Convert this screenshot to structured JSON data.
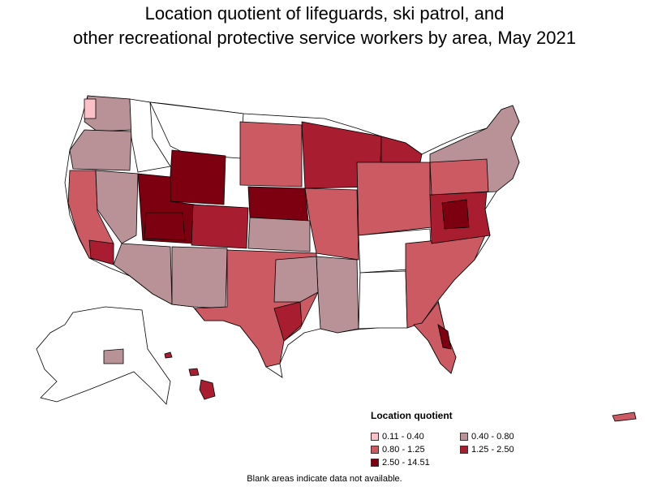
{
  "title_line1": "Location quotient of lifeguards, ski patrol, and",
  "title_line2": "other recreational protective service workers by area, May 2021",
  "legend": {
    "title": "Location quotient",
    "items": [
      {
        "label": "0.11 - 0.40",
        "color": "#fbc0c8"
      },
      {
        "label": "0.40 - 0.80",
        "color": "#b99297"
      },
      {
        "label": "0.80 - 1.25",
        "color": "#cc5a63"
      },
      {
        "label": "1.25 - 2.50",
        "color": "#a81e30"
      },
      {
        "label": "2.50 - 14.51",
        "color": "#7c0010"
      }
    ]
  },
  "note": "Blank areas indicate data not available."
}
